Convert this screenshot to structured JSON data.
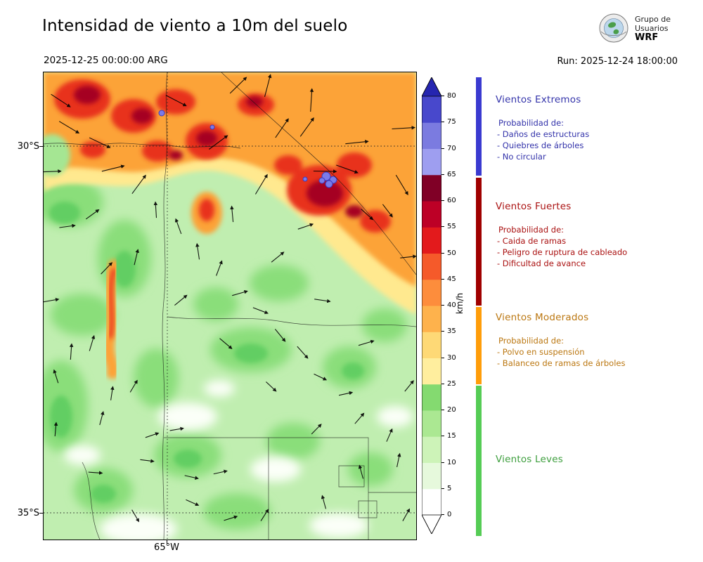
{
  "header": {
    "title": "Intensidad de viento a 10m del suelo",
    "datetime": "2025-12-25 00:00:00 ARG",
    "run_label": "Run: 2025-12-24 18:00:00",
    "logo": {
      "line1": "Grupo de",
      "line2": "Usuarios",
      "line3": "WRF"
    }
  },
  "map": {
    "lat_labels": [
      "30°S",
      "35°S"
    ],
    "lon_label": "65°W"
  },
  "colorbar": {
    "unit": "km/h",
    "ticks": [
      "0",
      "5",
      "10",
      "15",
      "20",
      "25",
      "30",
      "35",
      "40",
      "45",
      "50",
      "55",
      "60",
      "65",
      "70",
      "75",
      "80"
    ],
    "segments_low_to_high": [
      "#ffffff",
      "#e6f9dc",
      "#cdf3b8",
      "#abe892",
      "#84da70",
      "#ffee9e",
      "#fed976",
      "#feb24c",
      "#fd8d3c",
      "#f55a2a",
      "#e31a1c",
      "#bd0026",
      "#800026",
      "#9e9ef0",
      "#7b7be0",
      "#4848cc"
    ],
    "over_color": "#2525b0",
    "under_color": "#ffffff"
  },
  "legend": {
    "sections": [
      {
        "title": "Vientos Extremos",
        "text_color": "#3333aa",
        "bar_color": "#3a3ad0",
        "prob_label": "Probabilidad de:",
        "items": [
          "- Daños de estructuras",
          "- Quiebres de árboles",
          "- No circular"
        ]
      },
      {
        "title": "Vientos Fuertes",
        "text_color": "#aa1111",
        "bar_color": "#a00000",
        "prob_label": "Probabilidad de:",
        "items": [
          "- Caida de ramas",
          "- Peligro de ruptura de cableado",
          "- Dificultad de avance"
        ]
      },
      {
        "title": "Vientos Moderados",
        "text_color": "#bb7711",
        "bar_color": "#ff9d0a",
        "prob_label": "Probabilidad de:",
        "items": [
          "- Polvo en suspensión",
          "- Balanceo de ramas de árboles"
        ]
      },
      {
        "title": "Vientos Leves",
        "text_color": "#3d9e3d",
        "bar_color": "#55cc55",
        "prob_label": "",
        "items": []
      }
    ]
  }
}
